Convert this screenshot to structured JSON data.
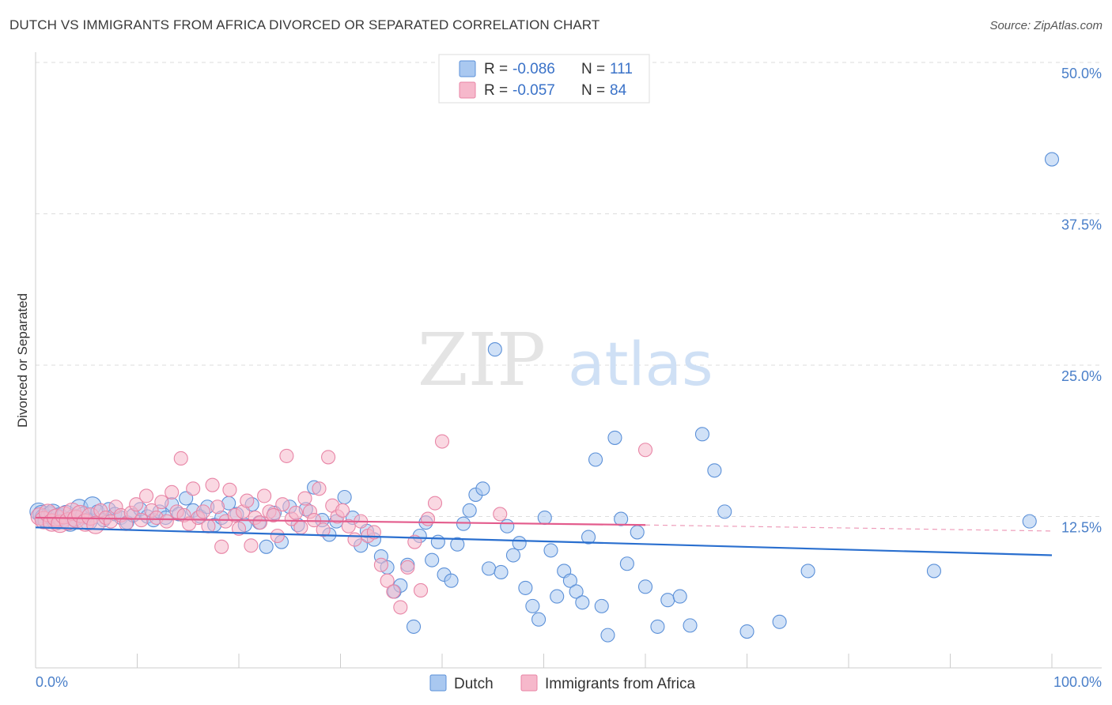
{
  "title": "DUTCH VS IMMIGRANTS FROM AFRICA DIVORCED OR SEPARATED CORRELATION CHART",
  "source": "Source: ZipAtlas.com",
  "watermark": {
    "zip": "ZIP",
    "atlas": "atlas"
  },
  "colors": {
    "dutch_fill": "#a9c8f0",
    "dutch_stroke": "#5b90d8",
    "dutch_line": "#2a6fcf",
    "africa_fill": "#f6b8cb",
    "africa_stroke": "#e885a6",
    "africa_line": "#e35b8c",
    "tick_label": "#4a7fc9",
    "grid": "#dddddd"
  },
  "legend": {
    "rows": [
      {
        "r_label": "R =",
        "r_value": "-0.086",
        "n_label": "N =",
        "n_value": "111"
      },
      {
        "r_label": "R =",
        "r_value": "-0.057",
        "n_label": "N =",
        "n_value": "84"
      }
    ]
  },
  "chart_data": {
    "type": "scatter",
    "xlabel": "",
    "ylabel": "Divorced or Separated",
    "xlim": [
      0,
      100
    ],
    "ylim": [
      0,
      50
    ],
    "x_tick_labels": [
      {
        "value": 0,
        "label": "0.0%"
      },
      {
        "value": 100,
        "label": "100.0%"
      }
    ],
    "y_tick_labels": [
      {
        "value": 12.5,
        "label": "12.5%"
      },
      {
        "value": 25.0,
        "label": "25.0%"
      },
      {
        "value": 37.5,
        "label": "37.5%"
      },
      {
        "value": 50.0,
        "label": "50.0%"
      }
    ],
    "grid": true,
    "legend_position": "top-center",
    "series": [
      {
        "name": "Dutch",
        "trend": {
          "x0": 0,
          "y0": 11.6,
          "x1": 100,
          "y1": 9.3
        },
        "points": [
          [
            0.3,
            12.9
          ],
          [
            0.6,
            12.7
          ],
          [
            0.8,
            12.4
          ],
          [
            1.1,
            12.2
          ],
          [
            1.4,
            12.6
          ],
          [
            1.7,
            12.8
          ],
          [
            2.0,
            12.1
          ],
          [
            2.3,
            12.5
          ],
          [
            2.6,
            12.3
          ],
          [
            3.0,
            12.7
          ],
          [
            3.4,
            12.0
          ],
          [
            3.8,
            12.4
          ],
          [
            4.3,
            13.2
          ],
          [
            4.8,
            12.6
          ],
          [
            5.2,
            12.1
          ],
          [
            5.6,
            13.4
          ],
          [
            6.1,
            12.9
          ],
          [
            6.7,
            12.2
          ],
          [
            7.2,
            13.1
          ],
          [
            7.8,
            12.7
          ],
          [
            8.4,
            12.4
          ],
          [
            9.0,
            12.0
          ],
          [
            9.6,
            12.6
          ],
          [
            10.3,
            13.1
          ],
          [
            11.0,
            12.5
          ],
          [
            11.6,
            12.2
          ],
          [
            12.2,
            12.9
          ],
          [
            12.8,
            12.4
          ],
          [
            13.4,
            13.5
          ],
          [
            14.1,
            12.7
          ],
          [
            14.8,
            14.0
          ],
          [
            15.5,
            13.0
          ],
          [
            16.2,
            12.5
          ],
          [
            16.9,
            13.3
          ],
          [
            17.6,
            11.8
          ],
          [
            18.3,
            12.4
          ],
          [
            19.0,
            13.6
          ],
          [
            19.8,
            12.7
          ],
          [
            20.6,
            11.8
          ],
          [
            21.3,
            13.5
          ],
          [
            22.0,
            12.0
          ],
          [
            22.7,
            10.0
          ],
          [
            23.5,
            12.8
          ],
          [
            24.2,
            10.4
          ],
          [
            25.0,
            13.3
          ],
          [
            25.8,
            11.8
          ],
          [
            26.6,
            13.1
          ],
          [
            27.4,
            14.9
          ],
          [
            28.2,
            12.2
          ],
          [
            28.9,
            11.0
          ],
          [
            29.6,
            12.1
          ],
          [
            30.4,
            14.1
          ],
          [
            31.2,
            12.4
          ],
          [
            32.0,
            10.1
          ],
          [
            32.6,
            11.3
          ],
          [
            33.3,
            10.6
          ],
          [
            34.0,
            9.2
          ],
          [
            34.6,
            8.3
          ],
          [
            35.3,
            6.3
          ],
          [
            35.9,
            6.8
          ],
          [
            36.6,
            8.5
          ],
          [
            37.2,
            3.4
          ],
          [
            37.8,
            10.9
          ],
          [
            38.4,
            12.0
          ],
          [
            39.0,
            8.9
          ],
          [
            39.6,
            10.4
          ],
          [
            40.2,
            7.7
          ],
          [
            40.9,
            7.2
          ],
          [
            41.5,
            10.2
          ],
          [
            42.1,
            11.9
          ],
          [
            42.7,
            13.0
          ],
          [
            43.3,
            14.3
          ],
          [
            44.0,
            14.8
          ],
          [
            44.6,
            8.2
          ],
          [
            45.2,
            26.3
          ],
          [
            45.8,
            7.9
          ],
          [
            46.4,
            11.7
          ],
          [
            47.0,
            9.3
          ],
          [
            47.6,
            10.3
          ],
          [
            48.2,
            6.6
          ],
          [
            48.9,
            5.1
          ],
          [
            49.5,
            4.0
          ],
          [
            50.1,
            12.4
          ],
          [
            50.7,
            9.7
          ],
          [
            51.3,
            5.9
          ],
          [
            52.0,
            8.0
          ],
          [
            52.6,
            7.2
          ],
          [
            53.2,
            6.3
          ],
          [
            53.8,
            5.4
          ],
          [
            54.4,
            10.8
          ],
          [
            55.1,
            17.2
          ],
          [
            55.7,
            5.1
          ],
          [
            56.3,
            2.7
          ],
          [
            57.0,
            19.0
          ],
          [
            57.6,
            12.3
          ],
          [
            58.2,
            8.6
          ],
          [
            59.2,
            11.2
          ],
          [
            60.0,
            6.7
          ],
          [
            61.2,
            3.4
          ],
          [
            62.2,
            5.6
          ],
          [
            63.4,
            5.9
          ],
          [
            64.4,
            3.5
          ],
          [
            65.6,
            19.3
          ],
          [
            66.8,
            16.3
          ],
          [
            67.8,
            12.9
          ],
          [
            70.0,
            3.0
          ],
          [
            73.2,
            3.8
          ],
          [
            76.0,
            8.0
          ],
          [
            88.4,
            8.0
          ],
          [
            97.8,
            12.1
          ],
          [
            100.0,
            42.0
          ]
        ]
      },
      {
        "name": "Immigrants from Africa",
        "trend": {
          "x0": 0,
          "y0": 12.4,
          "x1": 60,
          "y1": 11.8,
          "dash_to": {
            "x": 100,
            "y": 11.3
          }
        },
        "points": [
          [
            0.4,
            12.5
          ],
          [
            0.8,
            12.2
          ],
          [
            1.2,
            12.8
          ],
          [
            1.6,
            12.0
          ],
          [
            2.0,
            12.4
          ],
          [
            2.4,
            11.9
          ],
          [
            2.8,
            12.6
          ],
          [
            3.2,
            12.1
          ],
          [
            3.6,
            12.9
          ],
          [
            4.0,
            12.3
          ],
          [
            4.4,
            12.7
          ],
          [
            4.9,
            12.0
          ],
          [
            5.4,
            12.5
          ],
          [
            5.9,
            11.8
          ],
          [
            6.4,
            13.0
          ],
          [
            6.9,
            12.4
          ],
          [
            7.4,
            12.1
          ],
          [
            7.9,
            13.3
          ],
          [
            8.4,
            12.6
          ],
          [
            8.9,
            11.9
          ],
          [
            9.4,
            12.8
          ],
          [
            9.9,
            13.5
          ],
          [
            10.4,
            12.2
          ],
          [
            10.9,
            14.2
          ],
          [
            11.4,
            13.0
          ],
          [
            11.9,
            12.4
          ],
          [
            12.4,
            13.7
          ],
          [
            12.9,
            12.1
          ],
          [
            13.4,
            14.5
          ],
          [
            13.9,
            12.9
          ],
          [
            14.3,
            17.3
          ],
          [
            14.6,
            12.6
          ],
          [
            15.1,
            11.9
          ],
          [
            15.5,
            14.8
          ],
          [
            16.0,
            12.4
          ],
          [
            16.5,
            12.9
          ],
          [
            17.0,
            11.7
          ],
          [
            17.4,
            15.1
          ],
          [
            17.9,
            13.3
          ],
          [
            18.3,
            10.0
          ],
          [
            18.7,
            12.1
          ],
          [
            19.1,
            14.7
          ],
          [
            19.6,
            12.6
          ],
          [
            20.0,
            11.5
          ],
          [
            20.4,
            12.9
          ],
          [
            20.8,
            13.8
          ],
          [
            21.2,
            10.1
          ],
          [
            21.6,
            12.4
          ],
          [
            22.1,
            12.0
          ],
          [
            22.5,
            14.2
          ],
          [
            23.0,
            12.9
          ],
          [
            23.4,
            12.6
          ],
          [
            23.8,
            10.9
          ],
          [
            24.3,
            13.5
          ],
          [
            24.7,
            17.5
          ],
          [
            25.2,
            12.3
          ],
          [
            25.6,
            12.8
          ],
          [
            26.1,
            11.6
          ],
          [
            26.5,
            14.0
          ],
          [
            27.0,
            12.9
          ],
          [
            27.4,
            12.2
          ],
          [
            27.9,
            14.8
          ],
          [
            28.3,
            11.4
          ],
          [
            28.8,
            17.4
          ],
          [
            29.2,
            13.4
          ],
          [
            29.7,
            12.5
          ],
          [
            30.2,
            13.0
          ],
          [
            30.8,
            11.7
          ],
          [
            31.4,
            10.6
          ],
          [
            32.0,
            12.1
          ],
          [
            32.7,
            10.9
          ],
          [
            33.3,
            11.2
          ],
          [
            34.0,
            8.5
          ],
          [
            34.6,
            7.2
          ],
          [
            35.2,
            6.3
          ],
          [
            35.9,
            5.0
          ],
          [
            36.6,
            8.3
          ],
          [
            37.3,
            10.4
          ],
          [
            37.9,
            6.4
          ],
          [
            38.6,
            12.3
          ],
          [
            39.3,
            13.6
          ],
          [
            40.0,
            18.7
          ],
          [
            45.7,
            12.7
          ],
          [
            60.0,
            18.0
          ]
        ]
      }
    ]
  },
  "bottom_legend": [
    {
      "label": "Dutch"
    },
    {
      "label": "Immigrants from Africa"
    }
  ]
}
